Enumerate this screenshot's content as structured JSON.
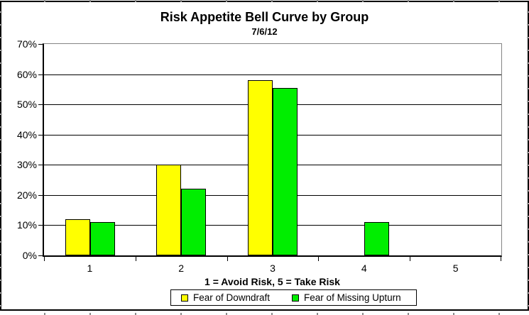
{
  "chart_data": {
    "type": "bar",
    "title": "Risk Appetite Bell Curve by Group",
    "subtitle": "7/6/12",
    "xlabel": "1 = Avoid Risk, 5 = Take Risk",
    "ylabel": "",
    "categories": [
      "1",
      "2",
      "3",
      "4",
      "5"
    ],
    "series": [
      {
        "name": "Fear of Downdraft",
        "color": "#FFFF00",
        "values": [
          12,
          30,
          58,
          0,
          0
        ]
      },
      {
        "name": "Fear of Missing Upturn",
        "color": "#00EE00",
        "values": [
          11,
          22,
          55.5,
          11,
          0
        ]
      }
    ],
    "ylim": [
      0,
      70
    ],
    "ytick_step": 10,
    "ytick_suffix": "%",
    "grid": true,
    "gridline_color": "#000000",
    "plot_frame_color": "#848484",
    "legend_position": "bottom",
    "background": "#FFFFFF",
    "border_color": "#000000"
  }
}
